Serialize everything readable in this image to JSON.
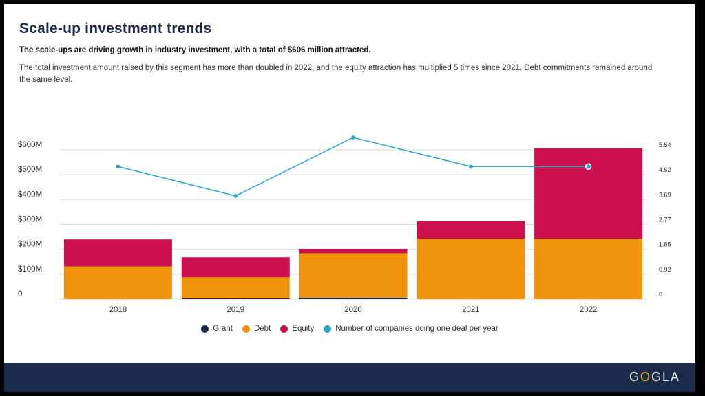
{
  "title": "Scale-up investment trends",
  "subtitle": "The scale-ups are driving growth in industry investment, with a total of $606 million attracted.",
  "description": "The total investment amount raised by this segment has more than doubled in 2022, and the equity attraction has multiplied 5 times since 2021. Debt commitments remained around the same level.",
  "logo": {
    "part1": "G",
    "part2": "O",
    "part3": "GLA"
  },
  "colors": {
    "grant": "#1c2b4a",
    "debt": "#f0920c",
    "equity": "#cc0f4f",
    "companies": "#2aa6c9",
    "grid": "#dcdcdc"
  },
  "chart_data": {
    "type": "bar",
    "stacked": true,
    "categories": [
      "2018",
      "2019",
      "2020",
      "2021",
      "2022"
    ],
    "series": [
      {
        "name": "Grant",
        "values": [
          0,
          3,
          6,
          0,
          0
        ]
      },
      {
        "name": "Debt",
        "values": [
          131,
          85,
          178,
          243,
          243
        ]
      },
      {
        "name": "Equity",
        "values": [
          109,
          80,
          18,
          70,
          363
        ]
      }
    ],
    "line_series": {
      "name": "Number of companies doing one deal per year",
      "axis": "right",
      "values": [
        4.92,
        3.83,
        6.0,
        4.92,
        4.92
      ]
    },
    "y_left": {
      "ylim": [
        0,
        600
      ],
      "ticks": [
        "0",
        "$100M",
        "$200M",
        "$300M",
        "$400M",
        "$500M",
        "$600M"
      ]
    },
    "y_right": {
      "ylim": [
        0,
        5.54
      ],
      "ticks": [
        "0",
        "0.92",
        "1.85",
        "2.77",
        "3.69",
        "4.62",
        "5.54"
      ]
    },
    "grid": true,
    "legend_position": "bottom"
  }
}
